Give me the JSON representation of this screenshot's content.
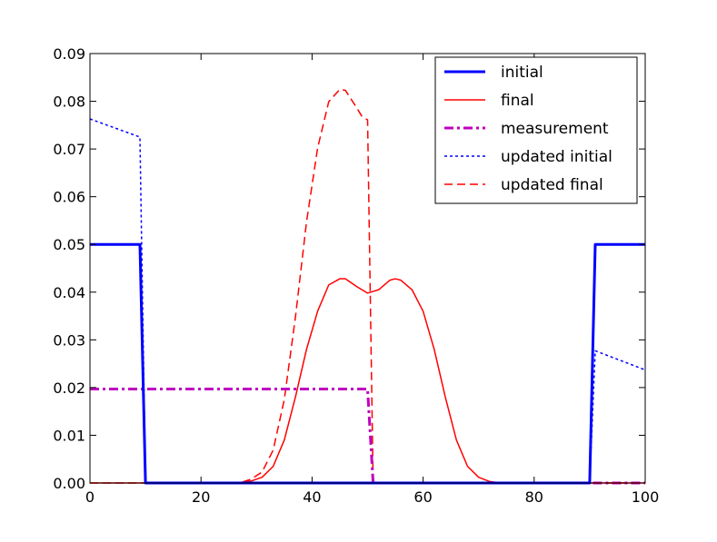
{
  "chart_data": {
    "type": "line",
    "title": "",
    "xlabel": "",
    "ylabel": "",
    "xlim": [
      0,
      100
    ],
    "ylim": [
      0,
      0.09
    ],
    "xticks": [
      0,
      20,
      40,
      60,
      80,
      100
    ],
    "xtick_labels": [
      "0",
      "20",
      "40",
      "60",
      "80",
      "100"
    ],
    "yticks": [
      0,
      0.01,
      0.02,
      0.03,
      0.04,
      0.05,
      0.06,
      0.07,
      0.08,
      0.09
    ],
    "ytick_labels": [
      "0.00",
      "0.01",
      "0.02",
      "0.03",
      "0.04",
      "0.05",
      "0.06",
      "0.07",
      "0.08",
      "0.09"
    ],
    "grid": false,
    "legend_position": "top-right",
    "series": [
      {
        "name": "initial",
        "color": "#0000ff",
        "style": "solid-thick",
        "points": [
          [
            0,
            0.05
          ],
          [
            9,
            0.05
          ],
          [
            10,
            0
          ],
          [
            90,
            0
          ],
          [
            91,
            0.05
          ],
          [
            100,
            0.05
          ]
        ]
      },
      {
        "name": "final",
        "color": "#ff0000",
        "style": "solid",
        "points": [
          [
            0,
            0
          ],
          [
            25,
            0
          ],
          [
            27,
            0.0001
          ],
          [
            29,
            0.0004
          ],
          [
            31,
            0.0012
          ],
          [
            33,
            0.0035
          ],
          [
            35,
            0.009
          ],
          [
            37,
            0.018
          ],
          [
            39,
            0.028
          ],
          [
            41,
            0.036
          ],
          [
            43,
            0.0415
          ],
          [
            45,
            0.0428
          ],
          [
            46,
            0.0428
          ],
          [
            48,
            0.0412
          ],
          [
            50,
            0.0398
          ],
          [
            52,
            0.0405
          ],
          [
            54,
            0.0425
          ],
          [
            55,
            0.0428
          ],
          [
            56,
            0.0425
          ],
          [
            58,
            0.0405
          ],
          [
            60,
            0.036
          ],
          [
            62,
            0.028
          ],
          [
            64,
            0.018
          ],
          [
            66,
            0.009
          ],
          [
            68,
            0.0035
          ],
          [
            70,
            0.0012
          ],
          [
            72,
            0.0003
          ],
          [
            74,
            0
          ],
          [
            100,
            0
          ]
        ]
      },
      {
        "name": "measurement",
        "color": "#bf00bf",
        "style": "dashdot",
        "points": [
          [
            0,
            0.0197
          ],
          [
            50,
            0.0197
          ],
          [
            51,
            0
          ],
          [
            100,
            0
          ]
        ]
      },
      {
        "name": "updated initial",
        "color": "#0000ff",
        "style": "dotted",
        "points": [
          [
            0,
            0.0763
          ],
          [
            9,
            0.0725
          ],
          [
            10,
            0
          ],
          [
            90,
            0
          ],
          [
            91,
            0.0277
          ],
          [
            100,
            0.0237
          ]
        ]
      },
      {
        "name": "updated final",
        "color": "#ff0000",
        "style": "dashed",
        "points": [
          [
            0,
            0
          ],
          [
            27,
            0
          ],
          [
            29,
            0.0008
          ],
          [
            31,
            0.0023
          ],
          [
            33,
            0.0069
          ],
          [
            35,
            0.0175
          ],
          [
            37,
            0.0347
          ],
          [
            39,
            0.0547
          ],
          [
            41,
            0.0702
          ],
          [
            43,
            0.0799
          ],
          [
            45,
            0.0825
          ],
          [
            46,
            0.0823
          ],
          [
            48,
            0.0787
          ],
          [
            49,
            0.0768
          ],
          [
            50,
            0.0761
          ],
          [
            51,
            0
          ],
          [
            100,
            0
          ]
        ]
      }
    ]
  }
}
